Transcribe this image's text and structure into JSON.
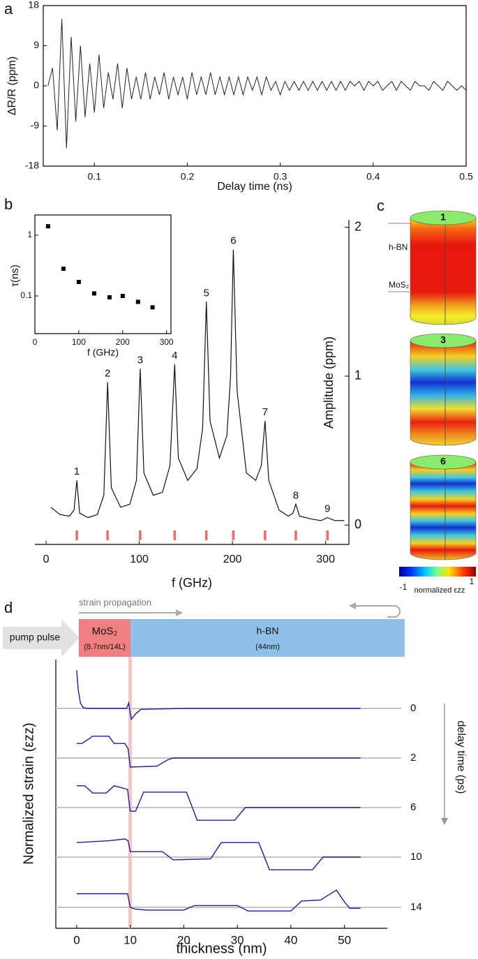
{
  "panel_labels": [
    "a",
    "b",
    "c",
    "d"
  ],
  "chart_data": [
    {
      "type": "line",
      "x_label": "Delay time (ns)",
      "y_label": "ΔR/R (ppm)",
      "x": [
        0.05,
        0.055,
        0.06,
        0.065,
        0.07,
        0.075,
        0.08,
        0.085,
        0.09,
        0.095,
        0.1,
        0.105,
        0.11,
        0.115,
        0.12,
        0.125,
        0.13,
        0.135,
        0.14,
        0.145,
        0.15,
        0.155,
        0.16,
        0.165,
        0.17,
        0.175,
        0.18,
        0.185,
        0.19,
        0.195,
        0.2,
        0.205,
        0.21,
        0.215,
        0.22,
        0.225,
        0.23,
        0.235,
        0.24,
        0.245,
        0.25,
        0.255,
        0.26,
        0.265,
        0.27,
        0.275,
        0.28,
        0.285,
        0.29,
        0.295,
        0.3,
        0.305,
        0.31,
        0.315,
        0.32,
        0.325,
        0.33,
        0.335,
        0.34,
        0.345,
        0.35,
        0.355,
        0.36,
        0.365,
        0.37,
        0.375,
        0.38,
        0.385,
        0.39,
        0.395,
        0.4,
        0.405,
        0.41,
        0.415,
        0.42,
        0.425,
        0.43,
        0.435,
        0.44,
        0.445,
        0.45,
        0.455,
        0.46,
        0.465,
        0.47,
        0.475,
        0.48,
        0.485,
        0.49,
        0.495,
        0.5
      ],
      "series": [
        {
          "color": "#222222",
          "values": [
            0,
            4,
            -10,
            15,
            -14,
            11,
            -8,
            9,
            -7,
            5,
            -6,
            7,
            -5,
            3,
            -3,
            5,
            -5,
            4,
            -3,
            2,
            -3,
            3,
            -3,
            2,
            -2,
            3,
            -3,
            2,
            -2,
            2,
            -3,
            3,
            -2,
            2,
            -2,
            3,
            -2,
            2,
            -2,
            2,
            -2,
            2,
            -2,
            2,
            -1,
            2,
            -2,
            2,
            -1,
            1,
            -2,
            1,
            -1,
            1,
            -1,
            1,
            -1,
            1,
            -1,
            1,
            -1,
            1,
            -1,
            1,
            -1,
            1,
            0,
            1,
            -1,
            1,
            0,
            1,
            -1,
            0,
            1,
            -1,
            1,
            0,
            -1,
            1,
            0,
            0,
            -1,
            1,
            0,
            -1,
            1,
            0,
            -1,
            0,
            -1
          ]
        }
      ],
      "xlim": [
        0.045,
        0.5
      ],
      "ylim": [
        -18,
        18
      ],
      "xticks": [
        0.1,
        0.2,
        0.3,
        0.4,
        0.5
      ],
      "yticks": [
        -18,
        -9,
        0,
        9,
        18
      ]
    },
    {
      "type": "line",
      "x_label": "f (GHz)",
      "y_label": "Amplitude (ppm)",
      "y_axis_side": "right",
      "x": [
        5,
        15,
        25,
        30,
        33,
        36,
        45,
        55,
        62,
        66,
        70,
        80,
        90,
        97,
        101,
        105,
        115,
        125,
        133,
        138,
        142,
        152,
        162,
        168,
        172,
        176,
        186,
        194,
        198,
        201,
        205,
        215,
        225,
        231,
        235,
        239,
        250,
        260,
        265,
        268,
        272,
        285,
        295,
        302,
        310,
        320
      ],
      "series": [
        {
          "color": "#111111",
          "values": [
            0.12,
            0.07,
            0.06,
            0.1,
            0.3,
            0.08,
            0.05,
            0.07,
            0.2,
            0.96,
            0.25,
            0.12,
            0.14,
            0.3,
            1.05,
            0.35,
            0.2,
            0.22,
            0.4,
            1.08,
            0.45,
            0.3,
            0.38,
            0.65,
            1.5,
            0.7,
            0.45,
            0.6,
            1.0,
            1.85,
            0.9,
            0.35,
            0.3,
            0.4,
            0.7,
            0.3,
            0.1,
            0.06,
            0.08,
            0.14,
            0.06,
            0.04,
            0.03,
            0.05,
            0.03,
            0.03
          ]
        }
      ],
      "mode_markers": {
        "x": [
          33,
          66,
          101,
          138,
          172,
          201,
          235,
          268,
          302
        ],
        "color": "#f26b6b"
      },
      "peak_labels": [
        "1",
        "2",
        "3",
        "4",
        "5",
        "6",
        "7",
        "8",
        "9"
      ],
      "xlim": [
        -12,
        325
      ],
      "ylim": [
        -0.13,
        2.05
      ],
      "xticks": [
        0,
        100,
        200,
        300
      ],
      "yticks": [
        0,
        1,
        2
      ]
    },
    {
      "type": "scatter",
      "x_label": "f (GHz)",
      "y_label": "τ(ns)",
      "y_scale": "log",
      "color": "#000000",
      "x": [
        30,
        65,
        100,
        135,
        170,
        200,
        235,
        268
      ],
      "values": [
        1.4,
        0.28,
        0.17,
        0.11,
        0.095,
        0.1,
        0.08,
        0.065
      ],
      "xlim": [
        0,
        310
      ],
      "ylim": [
        0.024,
        2.15
      ],
      "xticks": [
        0,
        100,
        200,
        300
      ],
      "yticks": [
        0.1,
        1
      ]
    },
    {
      "type": "line",
      "x_label": "thickness (nm)",
      "y_label": "Normalized strain (εzz)",
      "y2_label": "delay time (ps)",
      "annotations": {
        "propagation": "strain propagation",
        "pump": "pump pulse"
      },
      "layers": [
        {
          "name": "MoS₂",
          "detail": "(8.7nm/14L)",
          "color": "#f08080"
        },
        {
          "name": "h-BN",
          "detail": "(44nm)",
          "color": "#8ec0ea"
        }
      ],
      "baseline_color": "#c4c4c4",
      "interface_color": "#f9c4c4",
      "xlim": [
        -3.9,
        58
      ],
      "xticks": [
        0,
        10,
        20,
        30,
        40,
        50
      ],
      "series": [
        {
          "name": "0",
          "color": "#1c1c9c",
          "x": [
            0,
            0.3,
            0.7,
            1.2,
            2,
            9.3,
            9.7,
            9.9,
            10.2,
            11,
            12,
            20,
            53
          ],
          "values": [
            2.1,
            1.0,
            0.3,
            0.05,
            0,
            0,
            0.3,
            -0.1,
            -0.6,
            -0.3,
            -0.05,
            0,
            0
          ]
        },
        {
          "name": "2",
          "color": "#1c1c9c",
          "x": [
            0,
            1,
            3,
            6,
            7,
            9,
            9.6,
            10,
            15,
            17,
            18,
            53
          ],
          "values": [
            0.8,
            0.8,
            1.2,
            1.2,
            0.8,
            0.8,
            0.5,
            -0.5,
            -0.45,
            -0.1,
            0,
            0
          ]
        },
        {
          "name": "6",
          "color": "#1c1c9c",
          "x": [
            0,
            1.5,
            3,
            5.5,
            7,
            9.5,
            10,
            11,
            12.5,
            20.5,
            22.5,
            29.5,
            31.5,
            53
          ],
          "values": [
            1.2,
            1.2,
            0.8,
            0.8,
            1.2,
            1.0,
            -0.2,
            -0.2,
            0.85,
            0.85,
            -0.7,
            -0.7,
            0,
            0
          ]
        },
        {
          "name": "10",
          "color": "#1c1c9c",
          "x": [
            0,
            6,
            9,
            9.6,
            10,
            16,
            18,
            25,
            27,
            34,
            36,
            44,
            46,
            53
          ],
          "values": [
            0.8,
            0.9,
            1.0,
            0.9,
            0.3,
            0.3,
            -0.15,
            -0.1,
            0.8,
            0.8,
            -0.7,
            -0.7,
            0,
            0
          ]
        },
        {
          "name": "14",
          "color": "#1c1c9c",
          "x": [
            0,
            9.5,
            10,
            11,
            13,
            20,
            22,
            30,
            32,
            40,
            42,
            45.5,
            48.5,
            50,
            51,
            53
          ],
          "values": [
            0.75,
            0.75,
            0,
            -0.1,
            -0.15,
            -0.15,
            0.1,
            0.1,
            -0.2,
            -0.2,
            0.35,
            0.4,
            0.95,
            0.3,
            -0.05,
            -0.05
          ]
        }
      ]
    }
  ],
  "panel_c": {
    "mode_labels": [
      "1",
      "3",
      "6"
    ],
    "layer_labels": [
      "h-BN",
      "MoS₂"
    ],
    "colorbar": {
      "min_label": "-1",
      "max_label": "1",
      "label": "normalized εzz"
    }
  }
}
